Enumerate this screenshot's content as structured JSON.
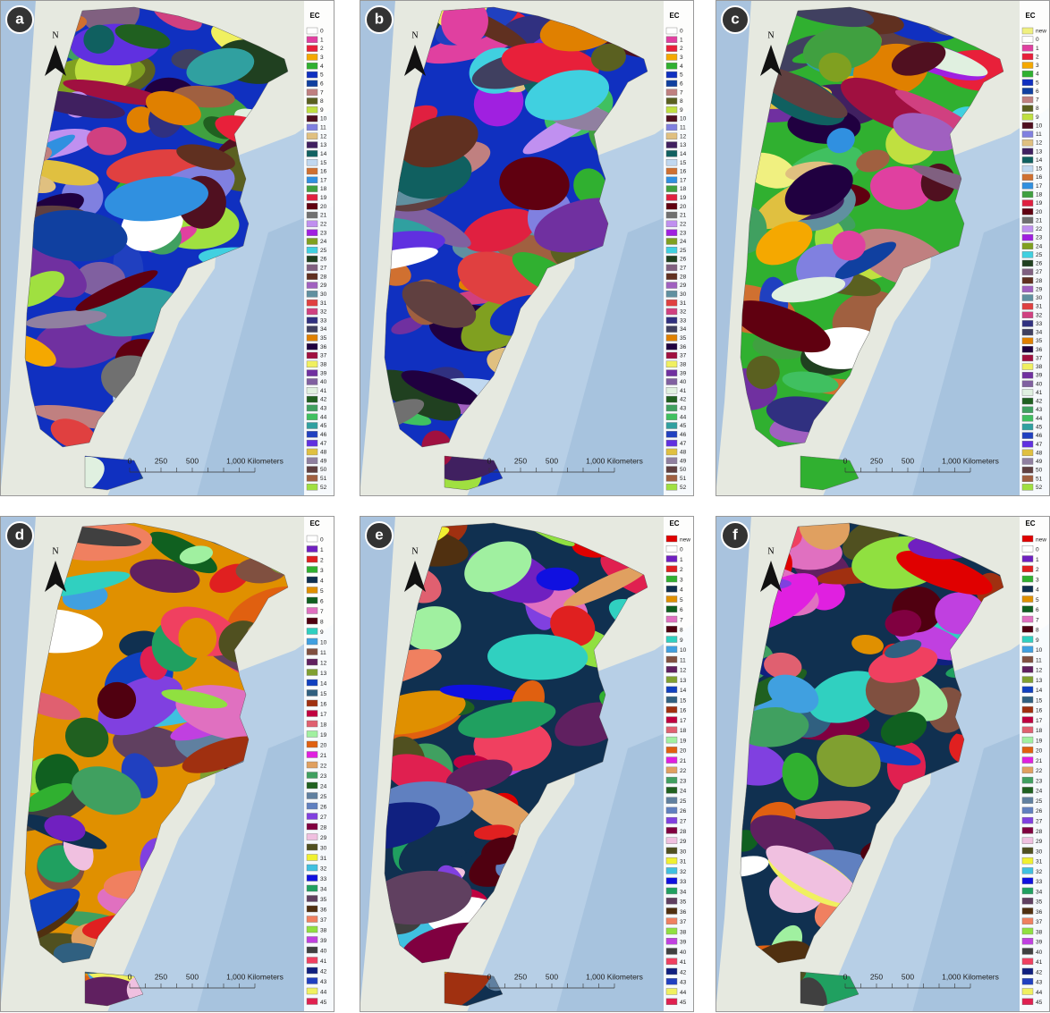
{
  "panels": [
    {
      "letter": "a",
      "north": "N",
      "scale_labels": [
        "0",
        "250",
        "500",
        "1,000 Kilometers"
      ],
      "legend": {
        "title": "EC",
        "items": [
          "0",
          "1",
          "2",
          "3",
          "4",
          "5",
          "6",
          "7",
          "8",
          "9",
          "10",
          "11",
          "12",
          "13",
          "14",
          "15",
          "16",
          "17",
          "18",
          "19",
          "20",
          "21",
          "22",
          "23",
          "24",
          "25",
          "26",
          "27",
          "28",
          "29",
          "30",
          "31",
          "32",
          "33",
          "34",
          "35",
          "36",
          "37",
          "38",
          "39",
          "40",
          "41",
          "42",
          "43",
          "44",
          "45",
          "46",
          "47",
          "48",
          "49",
          "50",
          "51",
          "52"
        ],
        "colors": [
          "#ffffff",
          "#e040a0",
          "#e8203a",
          "#f5a800",
          "#30b030",
          "#1030c0",
          "#1040a0",
          "#c08080",
          "#5a6020",
          "#c0e040",
          "#501020",
          "#8080e0",
          "#e0c080",
          "#402060",
          "#106060",
          "#c0d8f0",
          "#d07030",
          "#3090e0",
          "#40a040",
          "#e02040",
          "#600010",
          "#707070",
          "#c090f0",
          "#a020e0",
          "#80a020",
          "#40d0e0",
          "#204020",
          "#806080",
          "#603020",
          "#a060c0",
          "#6090a0",
          "#e04040",
          "#d04080",
          "#303080",
          "#404060",
          "#e08000",
          "#200040",
          "#a01040",
          "#f0f060",
          "#7030a0",
          "#8060a0",
          "#e0f0e0",
          "#206020",
          "#40a060",
          "#40c060",
          "#30a0a0",
          "#2040c0",
          "#6030e0",
          "#e0c040",
          "#9080a0",
          "#604040",
          "#a06040",
          "#a0e040"
        ]
      }
    },
    {
      "letter": "b",
      "north": "N",
      "scale_labels": [
        "0",
        "250",
        "500",
        "1,000 Kilometers"
      ],
      "legend": {
        "title": "EC",
        "items": [
          "0",
          "1",
          "2",
          "3",
          "4",
          "5",
          "6",
          "7",
          "8",
          "9",
          "10",
          "11",
          "12",
          "13",
          "14",
          "15",
          "16",
          "17",
          "18",
          "19",
          "20",
          "21",
          "22",
          "23",
          "24",
          "25",
          "26",
          "27",
          "28",
          "29",
          "30",
          "31",
          "32",
          "33",
          "34",
          "35",
          "36",
          "37",
          "38",
          "39",
          "40",
          "41",
          "42",
          "43",
          "44",
          "45",
          "46",
          "47",
          "48",
          "49",
          "50",
          "51",
          "52"
        ],
        "colors": [
          "#ffffff",
          "#e040a0",
          "#e8203a",
          "#f5a800",
          "#30b030",
          "#1030c0",
          "#1040a0",
          "#c08080",
          "#5a6020",
          "#c0e040",
          "#501020",
          "#8080e0",
          "#e0c080",
          "#402060",
          "#106060",
          "#c0d8f0",
          "#d07030",
          "#3090e0",
          "#40a040",
          "#e02040",
          "#600010",
          "#707070",
          "#c090f0",
          "#a020e0",
          "#80a020",
          "#40d0e0",
          "#204020",
          "#806080",
          "#603020",
          "#a060c0",
          "#6090a0",
          "#e04040",
          "#d04080",
          "#303080",
          "#404060",
          "#e08000",
          "#200040",
          "#a01040",
          "#f0f060",
          "#7030a0",
          "#8060a0",
          "#e0f0e0",
          "#206020",
          "#40a060",
          "#40c060",
          "#30a0a0",
          "#2040c0",
          "#6030e0",
          "#e0c040",
          "#9080a0",
          "#604040",
          "#a06040",
          "#a0e040"
        ]
      }
    },
    {
      "letter": "c",
      "north": "N",
      "scale_labels": [
        "0",
        "250",
        "500",
        "1,000 Kilometers"
      ],
      "legend": {
        "title": "EC",
        "items": [
          "new",
          "0",
          "1",
          "2",
          "3",
          "4",
          "5",
          "6",
          "7",
          "8",
          "9",
          "10",
          "11",
          "12",
          "13",
          "14",
          "15",
          "16",
          "17",
          "18",
          "19",
          "20",
          "21",
          "22",
          "23",
          "24",
          "25",
          "26",
          "27",
          "28",
          "29",
          "30",
          "31",
          "32",
          "33",
          "34",
          "35",
          "36",
          "37",
          "38",
          "39",
          "40",
          "41",
          "42",
          "43",
          "44",
          "45",
          "46",
          "47",
          "48",
          "49",
          "50",
          "51",
          "52"
        ],
        "colors": [
          "#f0f080",
          "#ffffff",
          "#e040a0",
          "#e8203a",
          "#f5a800",
          "#30b030",
          "#1030c0",
          "#1040a0",
          "#c08080",
          "#5a6020",
          "#c0e040",
          "#501020",
          "#8080e0",
          "#e0c080",
          "#402060",
          "#106060",
          "#c0d8f0",
          "#d07030",
          "#3090e0",
          "#40a040",
          "#e02040",
          "#600010",
          "#707070",
          "#c090f0",
          "#a020e0",
          "#80a020",
          "#40d0e0",
          "#204020",
          "#806080",
          "#603020",
          "#a060c0",
          "#6090a0",
          "#e04040",
          "#d04080",
          "#303080",
          "#404060",
          "#e08000",
          "#200040",
          "#a01040",
          "#f0f060",
          "#7030a0",
          "#8060a0",
          "#e0f0e0",
          "#206020",
          "#40a060",
          "#40c060",
          "#30a0a0",
          "#2040c0",
          "#6030e0",
          "#e0c040",
          "#9080a0",
          "#604040",
          "#a06040",
          "#a0e040"
        ]
      }
    },
    {
      "letter": "d",
      "north": "N",
      "scale_labels": [
        "0",
        "250",
        "500",
        "1,000 Kilometers"
      ],
      "legend": {
        "title": "EC",
        "items": [
          "0",
          "1",
          "2",
          "3",
          "4",
          "5",
          "6",
          "7",
          "8",
          "9",
          "10",
          "11",
          "12",
          "13",
          "14",
          "15",
          "16",
          "17",
          "18",
          "19",
          "20",
          "21",
          "22",
          "23",
          "24",
          "25",
          "26",
          "27",
          "28",
          "29",
          "30",
          "31",
          "32",
          "33",
          "34",
          "35",
          "36",
          "37",
          "38",
          "39",
          "40",
          "41",
          "42",
          "43",
          "44",
          "45"
        ],
        "colors": [
          "#ffffff",
          "#7020c0",
          "#e02020",
          "#30b030",
          "#103050",
          "#e09000",
          "#106020",
          "#e070c0",
          "#500010",
          "#30d0c0",
          "#40a0e0",
          "#805040",
          "#602060",
          "#80a030",
          "#1040c0",
          "#306080",
          "#a03010",
          "#c00040",
          "#e06070",
          "#a0f0a0",
          "#e06010",
          "#e020e0",
          "#e0a060",
          "#40a060",
          "#206020",
          "#6080a0",
          "#6080c0",
          "#8040e0",
          "#800040",
          "#f0c0e0",
          "#505020",
          "#f0f030",
          "#40c0e0",
          "#1010e0",
          "#20a060",
          "#604060",
          "#503010",
          "#f08060",
          "#90e040",
          "#c040e0",
          "#404040",
          "#f04060",
          "#102080",
          "#2040c0",
          "#f0f060",
          "#e02050"
        ]
      }
    },
    {
      "letter": "e",
      "north": "N",
      "scale_labels": [
        "0",
        "250",
        "500",
        "1,000 Kilometers"
      ],
      "legend": {
        "title": "EC",
        "items": [
          "new",
          "0",
          "1",
          "2",
          "3",
          "4",
          "5",
          "6",
          "7",
          "8",
          "9",
          "10",
          "11",
          "12",
          "13",
          "14",
          "15",
          "16",
          "17",
          "18",
          "19",
          "20",
          "21",
          "22",
          "23",
          "24",
          "25",
          "26",
          "27",
          "28",
          "29",
          "30",
          "31",
          "32",
          "33",
          "34",
          "35",
          "36",
          "37",
          "38",
          "39",
          "40",
          "41",
          "42",
          "43",
          "44",
          "45"
        ],
        "colors": [
          "#e00000",
          "#ffffff",
          "#7020c0",
          "#e02020",
          "#30b030",
          "#103050",
          "#e09000",
          "#106020",
          "#e070c0",
          "#500010",
          "#30d0c0",
          "#40a0e0",
          "#805040",
          "#602060",
          "#80a030",
          "#1040c0",
          "#306080",
          "#a03010",
          "#c00040",
          "#e06070",
          "#a0f0a0",
          "#e06010",
          "#e020e0",
          "#e0a060",
          "#40a060",
          "#206020",
          "#6080a0",
          "#6080c0",
          "#8040e0",
          "#800040",
          "#f0c0e0",
          "#505020",
          "#f0f030",
          "#40c0e0",
          "#1010e0",
          "#20a060",
          "#604060",
          "#503010",
          "#f08060",
          "#90e040",
          "#c040e0",
          "#404040",
          "#f04060",
          "#102080",
          "#2040c0",
          "#f0f060",
          "#e02050"
        ]
      }
    },
    {
      "letter": "f",
      "north": "N",
      "scale_labels": [
        "0",
        "250",
        "500",
        "1,000 Kilometers"
      ],
      "legend": {
        "title": "EC",
        "items": [
          "new",
          "0",
          "1",
          "2",
          "3",
          "4",
          "5",
          "6",
          "7",
          "8",
          "9",
          "10",
          "11",
          "12",
          "13",
          "14",
          "15",
          "16",
          "17",
          "18",
          "19",
          "20",
          "21",
          "22",
          "23",
          "24",
          "25",
          "26",
          "27",
          "28",
          "29",
          "30",
          "31",
          "32",
          "33",
          "34",
          "35",
          "36",
          "37",
          "38",
          "39",
          "40",
          "41",
          "42",
          "43",
          "44",
          "45"
        ],
        "colors": [
          "#e00000",
          "#ffffff",
          "#7020c0",
          "#e02020",
          "#30b030",
          "#103050",
          "#e09000",
          "#106020",
          "#e070c0",
          "#500010",
          "#30d0c0",
          "#40a0e0",
          "#805040",
          "#602060",
          "#80a030",
          "#1040c0",
          "#306080",
          "#a03010",
          "#c00040",
          "#e06070",
          "#a0f0a0",
          "#e06010",
          "#e020e0",
          "#e0a060",
          "#40a060",
          "#206020",
          "#6080a0",
          "#6080c0",
          "#8040e0",
          "#800040",
          "#f0c0e0",
          "#505020",
          "#f0f030",
          "#40c0e0",
          "#1010e0",
          "#20a060",
          "#604060",
          "#503010",
          "#f08060",
          "#90e040",
          "#c040e0",
          "#404040",
          "#f04060",
          "#102080",
          "#2040c0",
          "#f0f060",
          "#e02050"
        ]
      }
    }
  ]
}
